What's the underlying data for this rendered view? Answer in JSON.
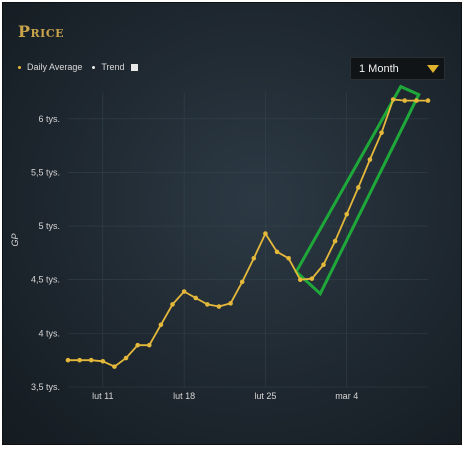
{
  "header": {
    "title": "Price"
  },
  "legend": {
    "daily_average": "Daily Average",
    "trend": "Trend"
  },
  "range_select": {
    "value": "1 Month"
  },
  "colors": {
    "line": "#e4b83a",
    "highlight": "#1fa83a",
    "grid": "#3a4a55"
  },
  "chart_data": {
    "type": "line",
    "title": "Price",
    "xlabel": "",
    "ylabel": "GP",
    "ylim": [
      3500,
      6250
    ],
    "yticks": [
      3500,
      4000,
      4500,
      5000,
      5500,
      6000
    ],
    "yticklabels": [
      "3,5 tys.",
      "4 tys.",
      "4,5 tys.",
      "5 tys.",
      "5,5 tys.",
      "6 tys."
    ],
    "xticks": [
      3,
      10,
      17,
      24
    ],
    "xticklabels": [
      "lut 11",
      "lut 18",
      "lut 25",
      "mar 4"
    ],
    "grid": true,
    "legend_position": "top-left",
    "series": [
      {
        "name": "Daily Average",
        "x": [
          0,
          1,
          2,
          3,
          4,
          5,
          6,
          7,
          8,
          9,
          10,
          11,
          12,
          13,
          14,
          15,
          16,
          17,
          18,
          19,
          20,
          21,
          22,
          23,
          24,
          25,
          26,
          27,
          28,
          29,
          30,
          31
        ],
        "values": [
          3750,
          3750,
          3750,
          3740,
          3690,
          3770,
          3890,
          3890,
          4080,
          4270,
          4390,
          4330,
          4270,
          4250,
          4280,
          4480,
          4700,
          4930,
          4760,
          4700,
          4500,
          4510,
          4640,
          4860,
          5110,
          5360,
          5620,
          5870,
          6180,
          6170,
          6170,
          6170
        ]
      }
    ],
    "annotations": [
      {
        "type": "highlight-box",
        "from_x": 20,
        "to_x": 29
      }
    ]
  }
}
